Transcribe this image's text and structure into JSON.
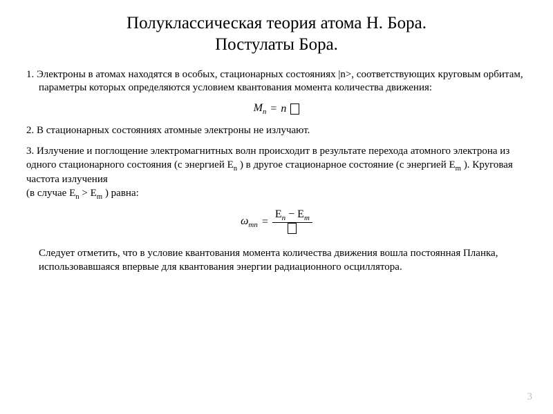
{
  "title_line1": "Полуклассическая теория атома Н. Бора.",
  "title_line2": "Постулаты Бора.",
  "p1": "1. Электроны в атомах находятся в особых, стационарных состояниях  |n>, соответствующих круговым орбитам, параметры которых определяются условием квантования момента количества движения:",
  "formula1": {
    "lhs_sym": "M",
    "lhs_sub": "n",
    "eq": "=",
    "rhs_sym": "n"
  },
  "p2": "2. В стационарных состояниях атомные электроны не излучают.",
  "p3a": "3. Излучение и поглощение электромагнитных волн происходит в результате перехода атомного электрона из одного стационарного состояния (с энергией E",
  "p3a_sub": "n",
  "p3b": " ) в другое стационарное состояние (с энергией E",
  "p3b_sub": "m",
  "p3c": " ). Круговая частота излучения",
  "p3d": "(в случае E",
  "p3d_sub1": "n",
  "p3e": " > E",
  "p3e_sub": "m",
  "p3f": " ) равна:",
  "formula2": {
    "omega": "ω",
    "omega_sub": "mn",
    "eq": "=",
    "num_a": "E",
    "num_a_sub": "n",
    "minus": "−",
    "num_b": "E",
    "num_b_sub": "m"
  },
  "note": "Следует отметить, что в условие квантования момента количества движения вошла постоянная Планка, использовавшаяся впервые для квантования энергии радиационного осциллятора.",
  "page_number": "3",
  "colors": {
    "text": "#000000",
    "bg": "#ffffff",
    "page_num": "#bfbfbf"
  }
}
